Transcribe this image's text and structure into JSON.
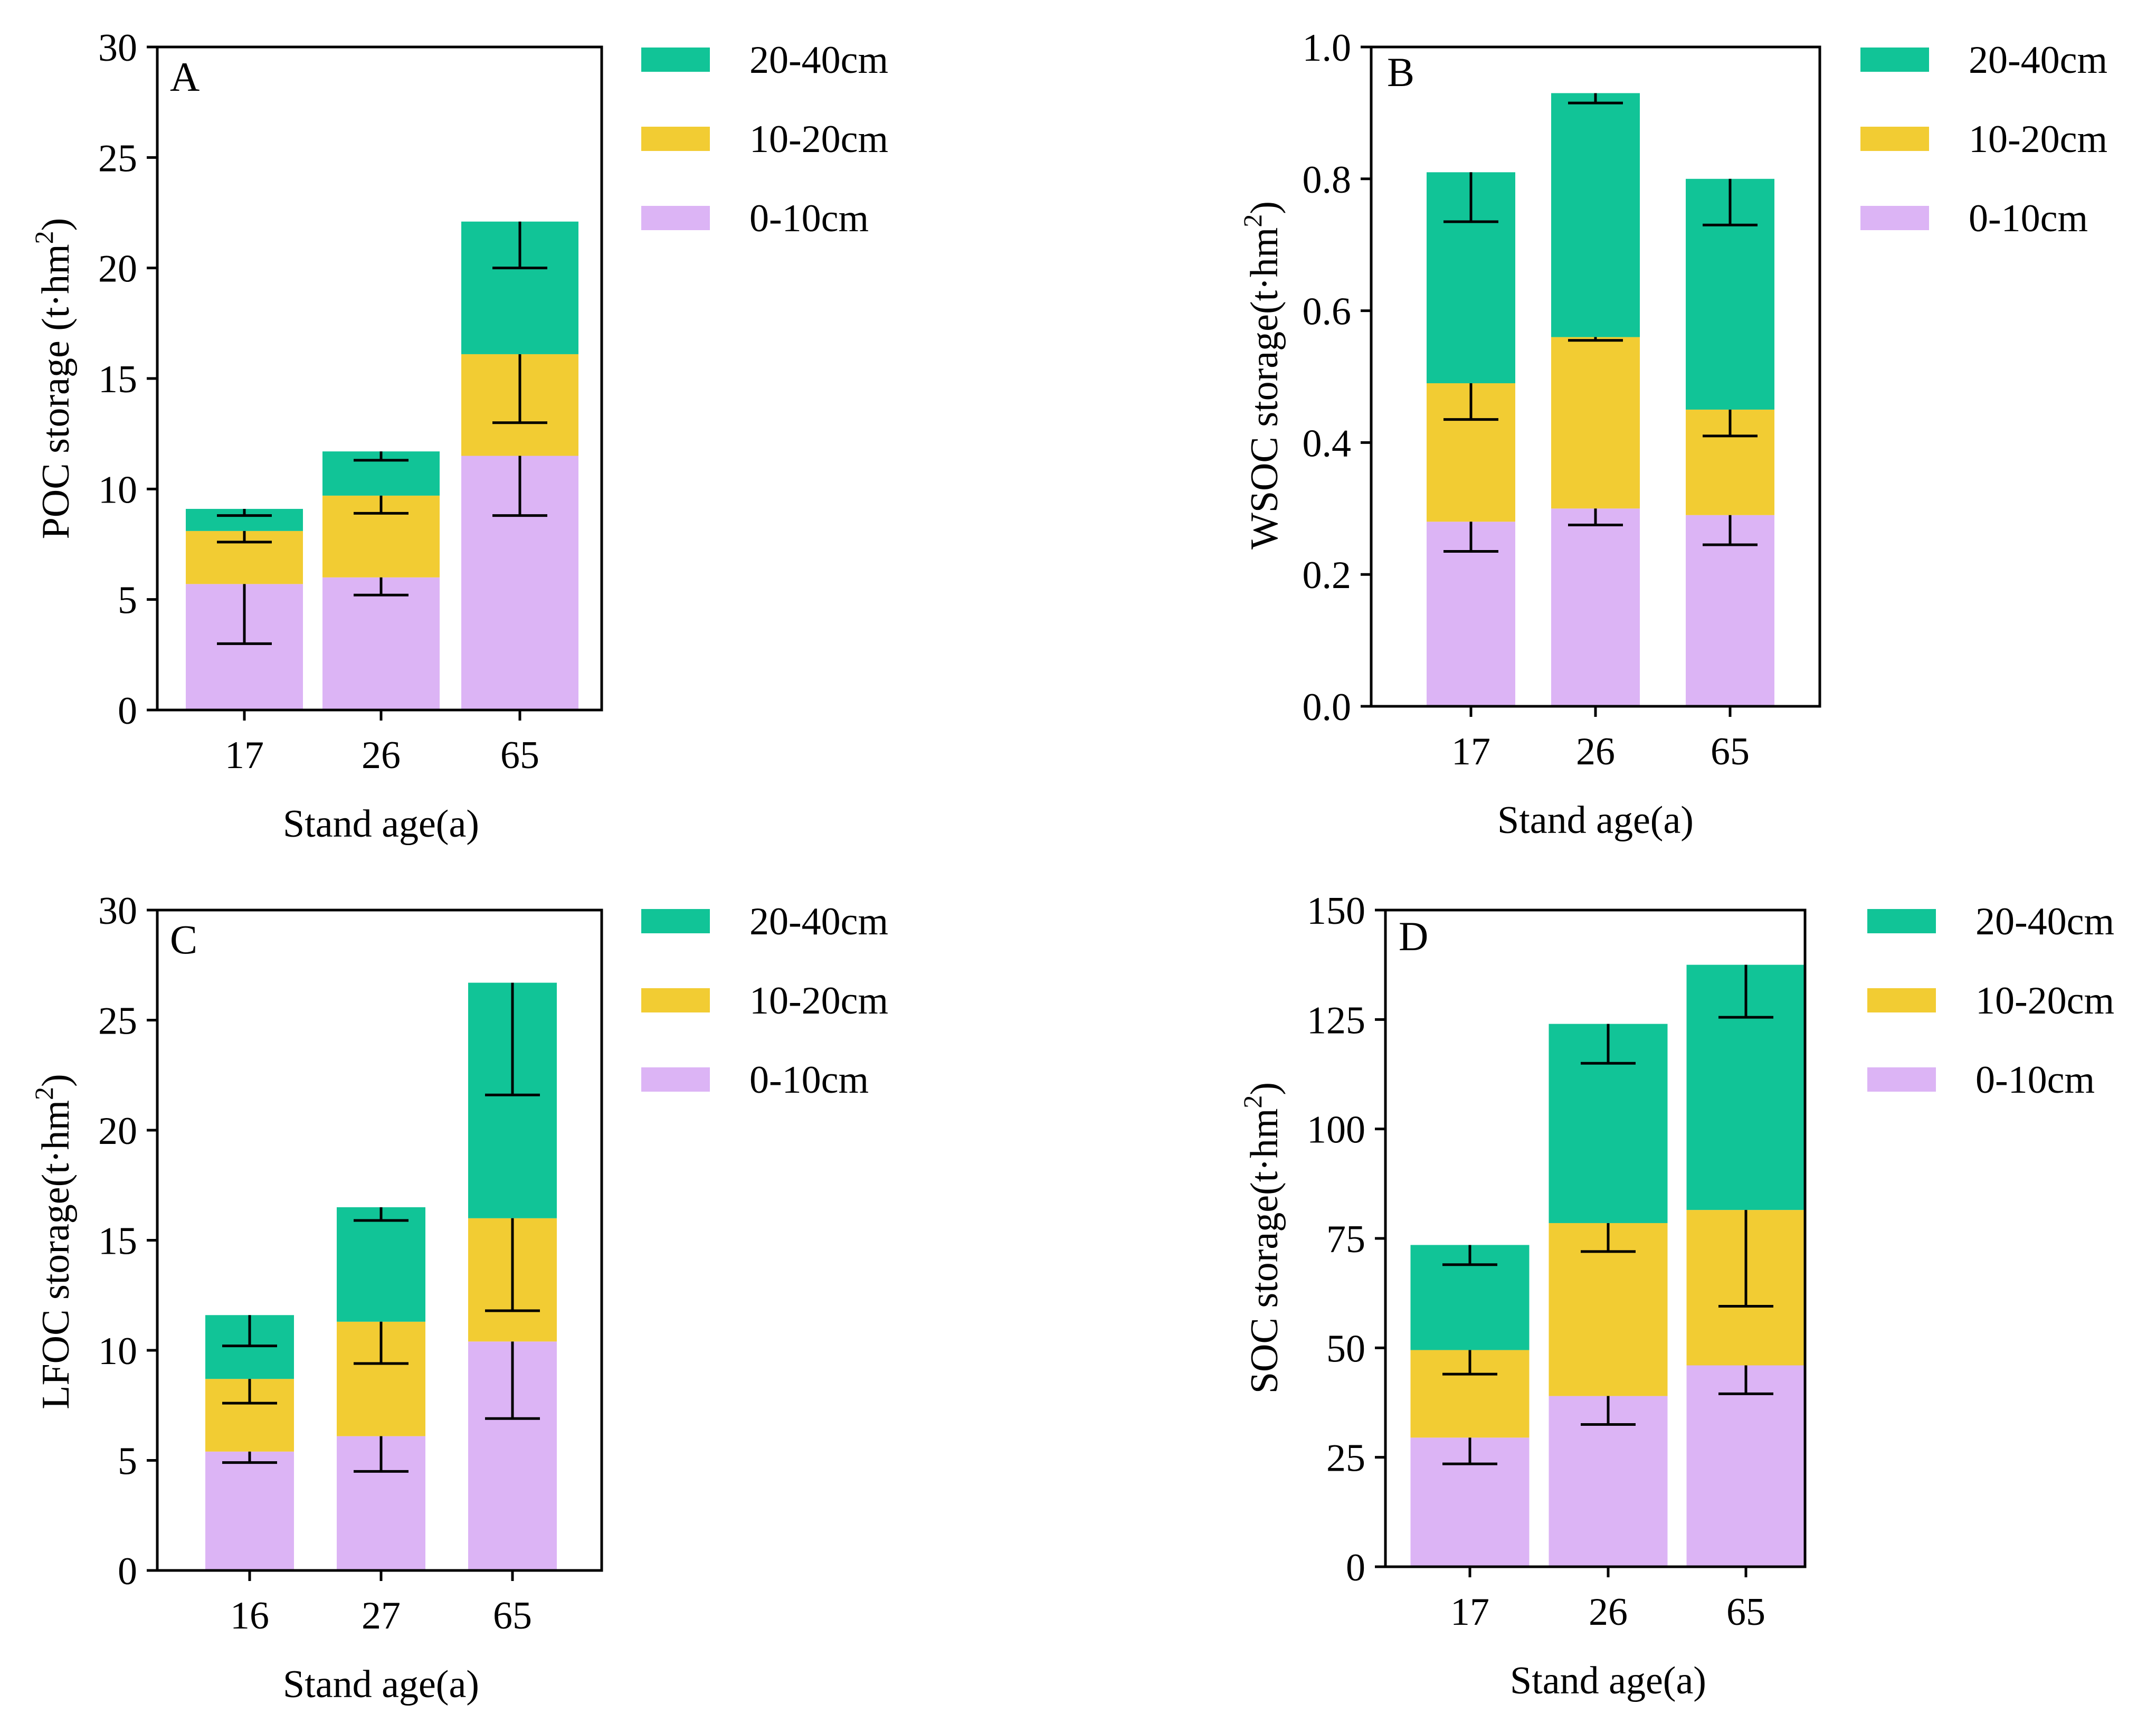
{
  "figure": {
    "legend_labels": [
      "20-40cm",
      "10-20cm",
      "0-10cm"
    ],
    "colors": {
      "layer_0_10": "#dcb4f5",
      "layer_10_20": "#f2cc33",
      "layer_20_40": "#11c497",
      "axis": "#000000"
    }
  },
  "chart_data": [
    {
      "type": "bar",
      "stacked": true,
      "panel": "A",
      "categories": [
        "17",
        "26",
        "65"
      ],
      "xlabel": "Stand age(a)",
      "ylabel": "POC storage (t·hm",
      "ylabel_sup": "2",
      "ylabel_close": ")",
      "ylim": [
        0,
        30
      ],
      "yticks": [
        0,
        5,
        10,
        15,
        20,
        25,
        30
      ],
      "ytick_labels": [
        "0",
        "5",
        "10",
        "15",
        "20",
        "25",
        "30"
      ],
      "series": [
        {
          "name": "0-10cm",
          "values": [
            5.7,
            6.0,
            11.5
          ],
          "error_low": [
            3.0,
            5.2,
            8.8
          ]
        },
        {
          "name": "10-20cm",
          "values": [
            2.4,
            3.7,
            4.6
          ],
          "error_low": [
            7.6,
            8.9,
            13.0
          ]
        },
        {
          "name": "20-40cm",
          "values": [
            1.0,
            2.0,
            6.0
          ],
          "error_low": [
            8.8,
            11.3,
            20.0
          ]
        }
      ],
      "legend": [
        "20-40cm",
        "10-20cm",
        "0-10cm"
      ]
    },
    {
      "type": "bar",
      "stacked": true,
      "panel": "B",
      "categories": [
        "17",
        "26",
        "65"
      ],
      "xlabel": "Stand age(a)",
      "ylabel": "WSOC storage(t·hm",
      "ylabel_sup": "2",
      "ylabel_close": ")",
      "ylim": [
        0,
        1.0
      ],
      "yticks": [
        0,
        0.2,
        0.4,
        0.6,
        0.8,
        1.0
      ],
      "ytick_labels": [
        "0.0",
        "0.2",
        "0.4",
        "0.6",
        "0.8",
        "1.0"
      ],
      "series": [
        {
          "name": "0-10cm",
          "values": [
            0.28,
            0.3,
            0.29
          ],
          "error_low": [
            0.235,
            0.275,
            0.245
          ]
        },
        {
          "name": "10-20cm",
          "values": [
            0.21,
            0.26,
            0.16
          ],
          "error_low": [
            0.435,
            0.555,
            0.41
          ]
        },
        {
          "name": "20-40cm",
          "values": [
            0.32,
            0.37,
            0.35
          ],
          "error_low": [
            0.735,
            0.915,
            0.73
          ]
        }
      ],
      "legend": [
        "20-40cm",
        "10-20cm",
        "0-10cm"
      ]
    },
    {
      "type": "bar",
      "stacked": true,
      "panel": "C",
      "categories": [
        "16",
        "27",
        "65"
      ],
      "xlabel": "Stand age(a)",
      "ylabel": "LFOC storage(t·hm",
      "ylabel_sup": "2",
      "ylabel_close": ")",
      "ylim": [
        0,
        30
      ],
      "yticks": [
        0,
        5,
        10,
        15,
        20,
        25,
        30
      ],
      "ytick_labels": [
        "0",
        "5",
        "10",
        "15",
        "20",
        "25",
        "30"
      ],
      "series": [
        {
          "name": "0-10cm",
          "values": [
            5.4,
            6.1,
            10.4
          ],
          "error_low": [
            4.9,
            4.5,
            6.9
          ]
        },
        {
          "name": "10-20cm",
          "values": [
            3.3,
            5.2,
            5.6
          ],
          "error_low": [
            7.6,
            9.4,
            11.8
          ]
        },
        {
          "name": "20-40cm",
          "values": [
            2.9,
            5.2,
            10.7
          ],
          "error_low": [
            10.2,
            15.9,
            21.6
          ]
        }
      ],
      "legend": [
        "20-40cm",
        "10-20cm",
        "0-10cm"
      ]
    },
    {
      "type": "bar",
      "stacked": true,
      "panel": "D",
      "categories": [
        "17",
        "26",
        "65"
      ],
      "xlabel": "Stand age(a)",
      "ylabel": "SOC storage(t·hm",
      "ylabel_sup": "2",
      "ylabel_close": ")",
      "ylim": [
        0,
        150
      ],
      "yticks": [
        0,
        25,
        50,
        75,
        100,
        125,
        150
      ],
      "ytick_labels": [
        "0",
        "25",
        "50",
        "75",
        "100",
        "125",
        "150"
      ],
      "series": [
        {
          "name": "0-10cm",
          "values": [
            29.5,
            39.0,
            46.0
          ],
          "error_low": [
            23.5,
            32.5,
            39.5
          ]
        },
        {
          "name": "10-20cm",
          "values": [
            20.0,
            39.5,
            35.5
          ],
          "error_low": [
            44.0,
            72.0,
            59.5
          ]
        },
        {
          "name": "20-40cm",
          "values": [
            24.0,
            45.5,
            56.0
          ],
          "error_low": [
            69.0,
            115.0,
            125.5
          ]
        }
      ],
      "legend": [
        "20-40cm",
        "10-20cm",
        "0-10cm"
      ]
    }
  ]
}
